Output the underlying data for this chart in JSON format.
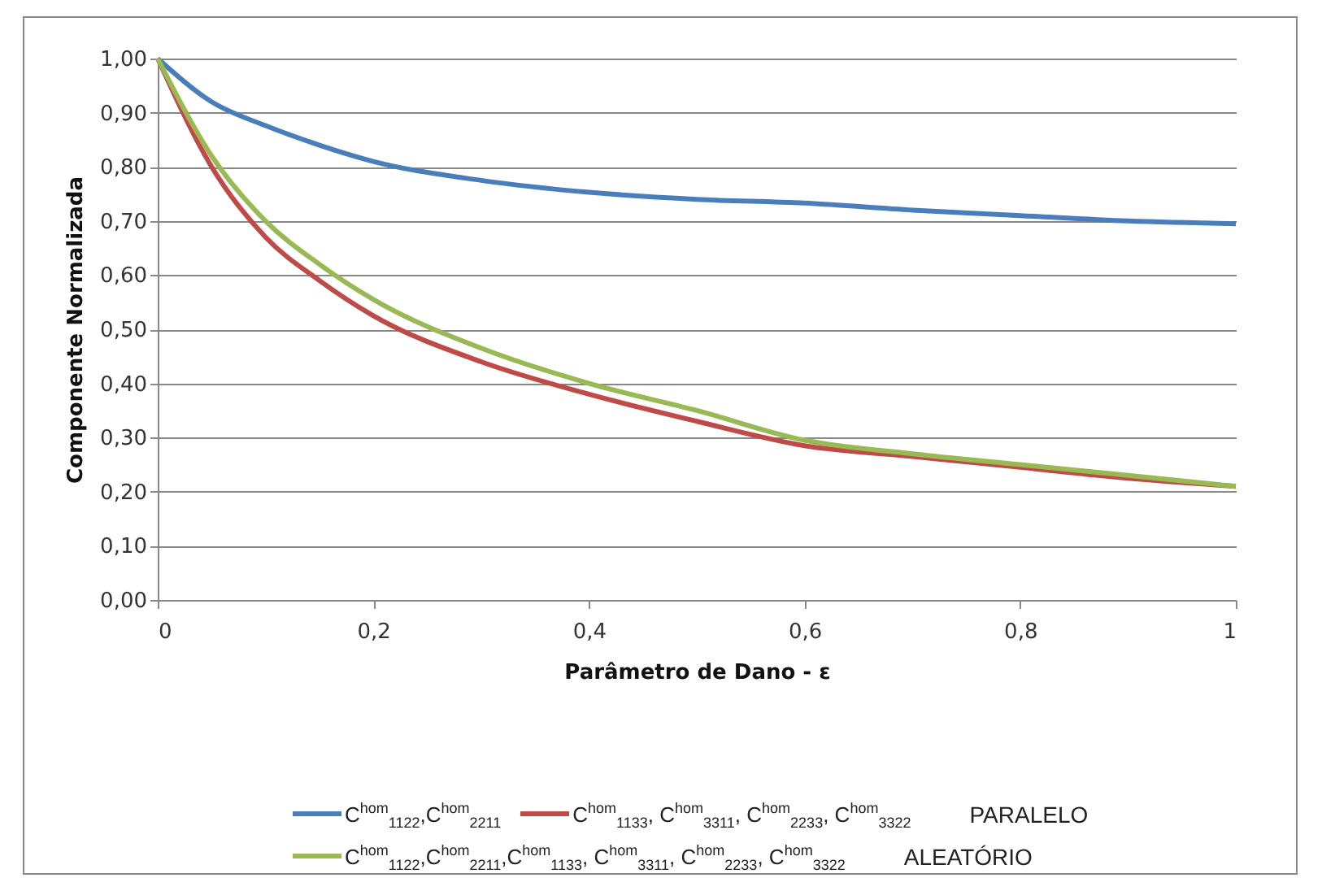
{
  "chart_data": {
    "type": "line",
    "xlabel": "Parâmetro de Dano - ε",
    "ylabel": "Componente Normalizada",
    "x": [
      0,
      0.05,
      0.1,
      0.15,
      0.2,
      0.3,
      0.4,
      0.5,
      0.6,
      0.7,
      0.8,
      0.9,
      1
    ],
    "series": [
      {
        "name": "C$^{hom}$$_{1122}$,C$^{hom}$$_{2211}$",
        "color": "#4a7ebb",
        "values": [
          1,
          0.92,
          0.876,
          0.84,
          0.81,
          0.775,
          0.753,
          0.74,
          0.733,
          0.72,
          0.71,
          0.7,
          0.695
        ]
      },
      {
        "name": "C$^{hom}$$_{1133}$, C$^{hom}$$_{3311}$, C$^{hom}$$_{2233}$, C$^{hom}$$_{3322}$",
        "color": "#be4b48",
        "values": [
          1,
          0.8,
          0.67,
          0.59,
          0.525,
          0.44,
          0.38,
          0.33,
          0.285,
          0.265,
          0.245,
          0.225,
          0.21
        ]
      },
      {
        "name": "C$^{hom}$$_{1122}$,C$^{hom}$$_{2211}$,C$^{hom}$$_{1133}$, C$^{hom}$$_{3311}$, C$^{hom}$$_{2233}$, C$^{hom}$$_{3322}$",
        "color": "#98b954",
        "values": [
          1,
          0.82,
          0.7,
          0.62,
          0.555,
          0.465,
          0.4,
          0.35,
          0.295,
          0.27,
          0.25,
          0.23,
          0.21
        ]
      }
    ],
    "annotations": [
      "PARALELO",
      "ALEATÓRIO"
    ],
    "xlim": [
      0,
      1
    ],
    "xticks": [
      0,
      {
        "value": 0.2,
        "label": "0,2"
      },
      {
        "value": 0.4,
        "label": "0,4"
      },
      {
        "value": 0.6,
        "label": "0,6"
      },
      {
        "value": 0.8,
        "label": "0,8"
      },
      1
    ],
    "ylim": [
      0,
      1
    ],
    "yticks": [
      {
        "value": 0,
        "label": "0,00"
      },
      {
        "value": 0.1,
        "label": "0,10"
      },
      {
        "value": 0.2,
        "label": "0,20"
      },
      {
        "value": 0.3,
        "label": "0,30"
      },
      {
        "value": 0.4,
        "label": "0,40"
      },
      {
        "value": 0.5,
        "label": "0,50"
      },
      {
        "value": 0.6,
        "label": "0,60"
      },
      {
        "value": 0.7,
        "label": "0,70"
      },
      {
        "value": 0.8,
        "label": "0,80"
      },
      {
        "value": 0.9,
        "label": "0,90"
      },
      {
        "value": 1,
        "label": "1,00"
      }
    ],
    "grid": "y",
    "legend": "bottom",
    "marker": "none",
    "line_style": "solid"
  }
}
